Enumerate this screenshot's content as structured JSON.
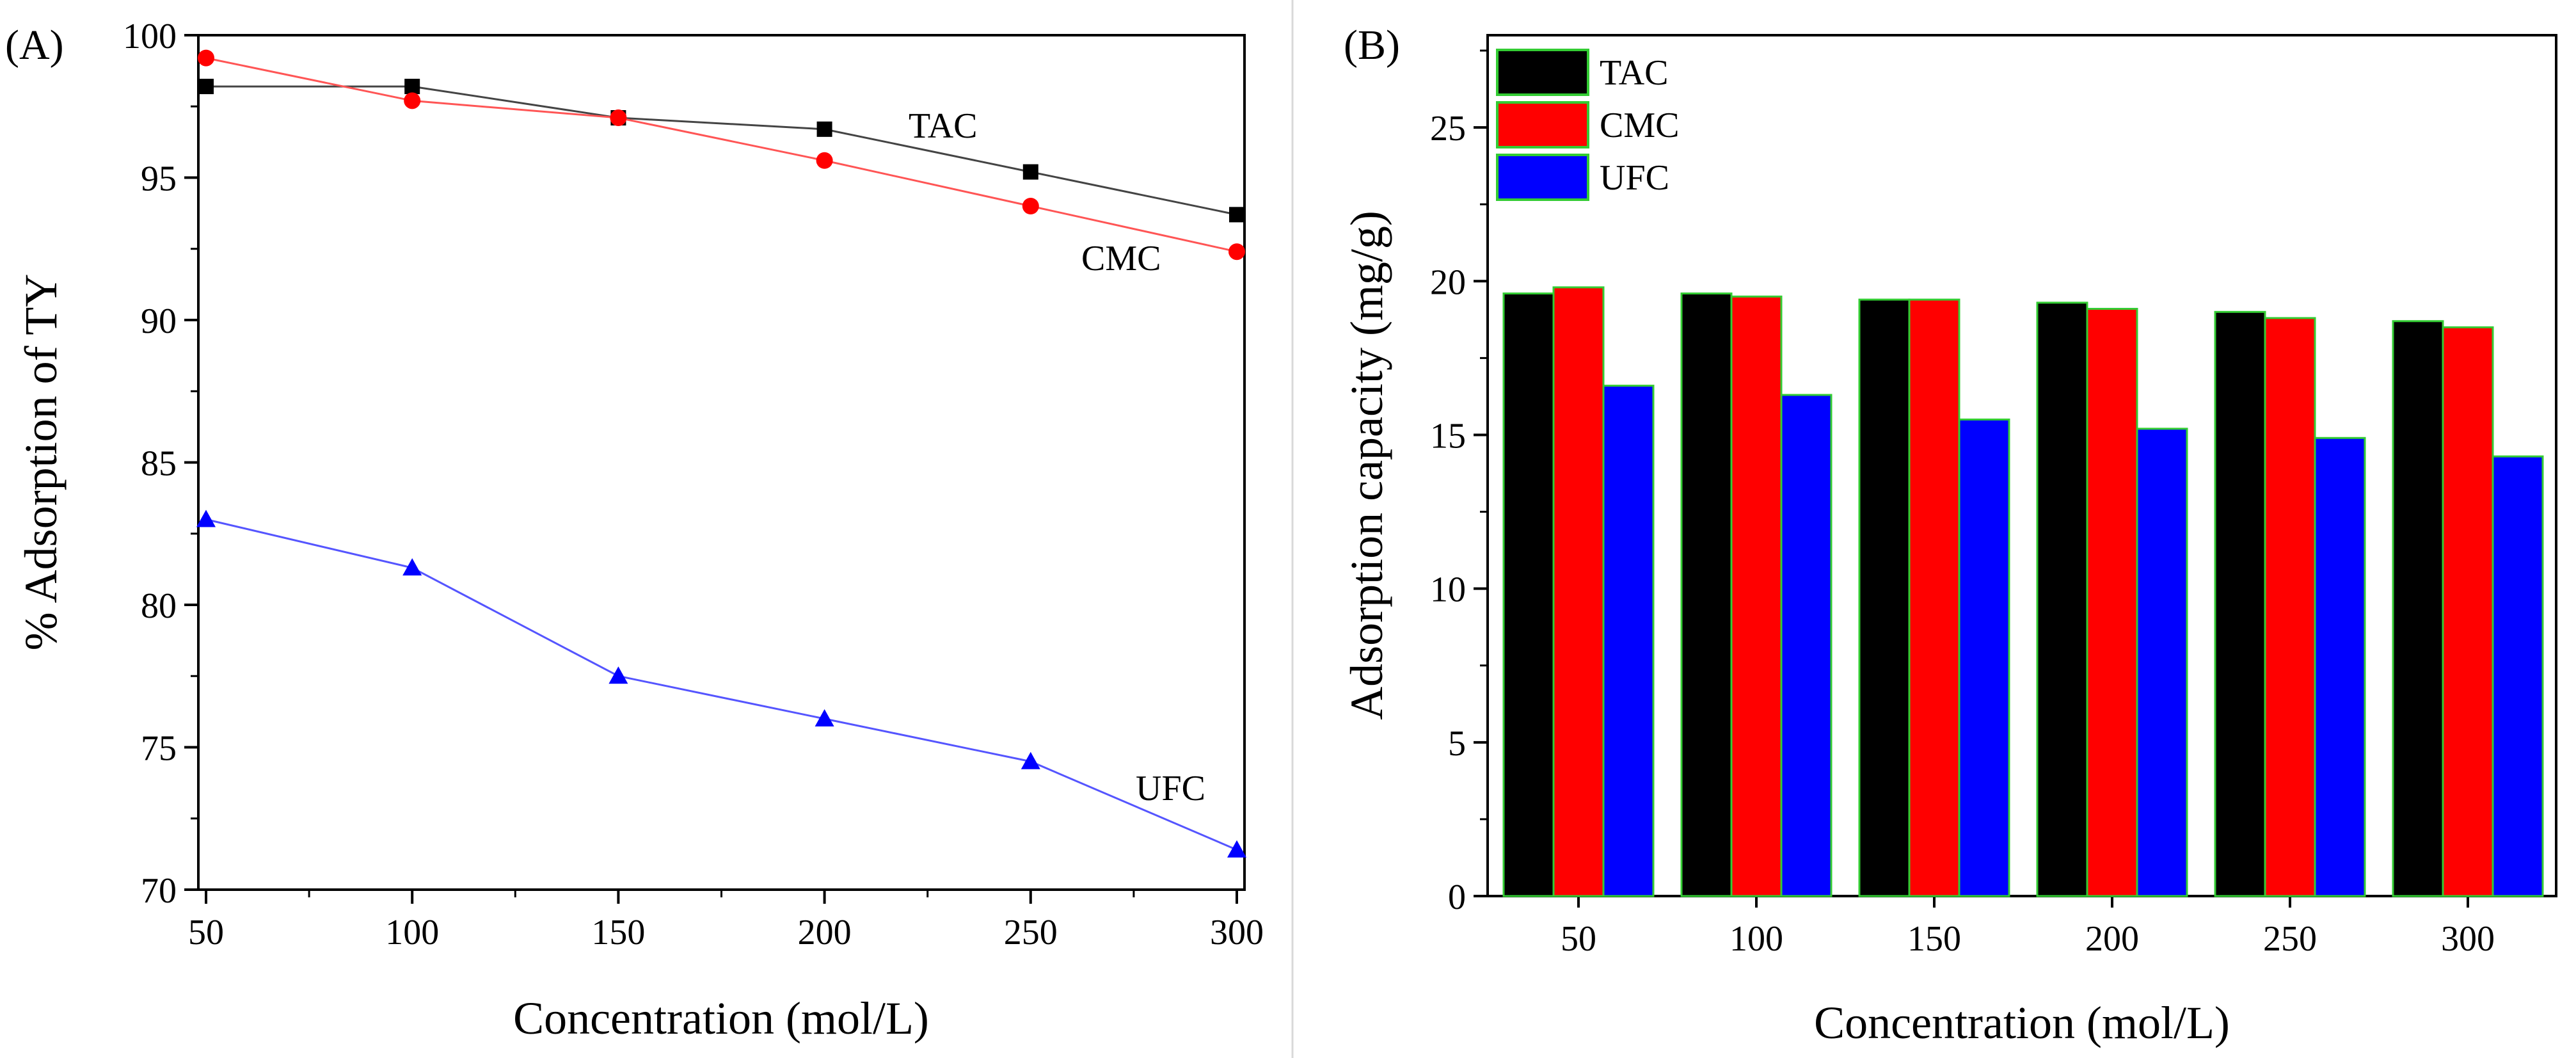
{
  "panels": {
    "a_label": "(A)",
    "b_label": "(B)"
  },
  "colors": {
    "tac": "#000000",
    "cmc": "#ff0000",
    "ufc": "#0000ff",
    "tac_line": "#444444",
    "cmc_line": "#ff5555",
    "ufc_line": "#5555ff",
    "bar_edge": "#33cc33",
    "axis": "#000000"
  },
  "chart_data": [
    {
      "type": "line",
      "panel": "(A)",
      "title": "",
      "xlabel": "Concentration (mol/L)",
      "ylabel": "% Adsorption of TY",
      "x": [
        50,
        100,
        150,
        200,
        250,
        300
      ],
      "xlim": [
        50,
        300
      ],
      "ylim": [
        70,
        100
      ],
      "xticks": [
        50,
        100,
        150,
        200,
        250,
        300
      ],
      "yticks": [
        70,
        75,
        80,
        85,
        90,
        95,
        100
      ],
      "series": [
        {
          "name": "TAC",
          "marker": "square",
          "values": [
            98.2,
            98.2,
            97.1,
            96.7,
            95.2,
            93.7
          ]
        },
        {
          "name": "CMC",
          "marker": "circle",
          "values": [
            99.2,
            97.7,
            97.1,
            95.6,
            94.0,
            92.4
          ]
        },
        {
          "name": "UFC",
          "marker": "triangle",
          "values": [
            83.0,
            81.3,
            77.5,
            76.0,
            74.5,
            71.4
          ]
        }
      ],
      "annotations": [
        "TAC",
        "CMC",
        "UFC"
      ]
    },
    {
      "type": "bar",
      "panel": "(B)",
      "title": "",
      "xlabel": "Concentration (mol/L)",
      "ylabel": "Adsorption capacity (mg/g)",
      "categories": [
        "50",
        "100",
        "150",
        "200",
        "250",
        "300"
      ],
      "ylim": [
        0,
        28
      ],
      "yticks": [
        0,
        5,
        10,
        15,
        20,
        25
      ],
      "legend": "top-left",
      "series": [
        {
          "name": "TAC",
          "values": [
            19.6,
            19.6,
            19.4,
            19.3,
            19.0,
            18.7
          ]
        },
        {
          "name": "CMC",
          "values": [
            19.8,
            19.5,
            19.4,
            19.1,
            18.8,
            18.5
          ]
        },
        {
          "name": "UFC",
          "values": [
            16.6,
            16.3,
            15.5,
            15.2,
            14.9,
            14.3
          ]
        }
      ]
    }
  ]
}
